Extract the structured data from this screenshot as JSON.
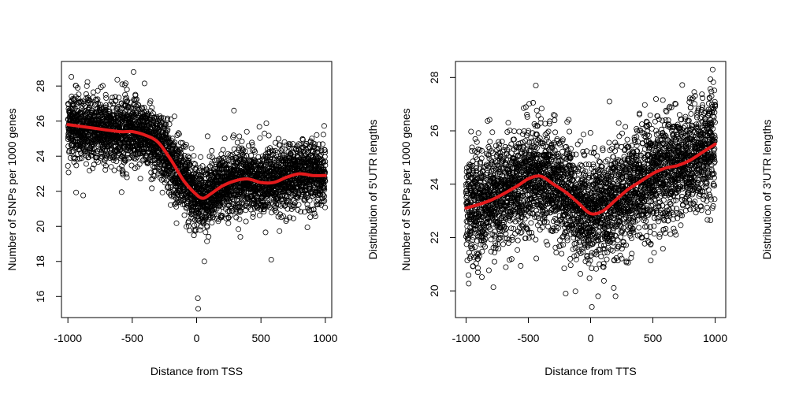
{
  "colors": {
    "points": "#000000",
    "smooth_line": "#e41a1c"
  },
  "chart_data": [
    {
      "type": "scatter",
      "title": "",
      "xlabel": "Distance from TSS",
      "ylabel": "Number of SNPs per 1000 genes",
      "secondary_ylabel": "Distribution of 5'UTR lengths",
      "xlim": [
        -1050,
        1050
      ],
      "ylim": [
        14.8,
        29.4
      ],
      "x_ticks": [
        -1000,
        -500,
        0,
        500,
        1000
      ],
      "x_tick_labels": [
        "-1000",
        "-500",
        "0",
        "500",
        "1000"
      ],
      "y_ticks": [
        16,
        18,
        20,
        22,
        24,
        26,
        28
      ],
      "y_tick_labels": [
        "16",
        "18",
        "20",
        "22",
        "24",
        "26",
        "28"
      ],
      "points_per_bin": 2,
      "point_x_range": [
        -1000,
        1000
      ],
      "scatter_sd": [
        1.0,
        1.15
      ],
      "outliers": [
        {
          "x": -490,
          "y": 28.8
        },
        {
          "x": 10,
          "y": 15.9
        },
        {
          "x": 12,
          "y": 15.3
        },
        {
          "x": 580,
          "y": 18.1
        },
        {
          "x": 60,
          "y": 18.0
        },
        {
          "x": 290,
          "y": 26.6
        },
        {
          "x": 340,
          "y": 19.4
        }
      ],
      "smooth": {
        "x": [
          -1000,
          -800,
          -600,
          -500,
          -400,
          -300,
          -200,
          -100,
          0,
          50,
          100,
          200,
          300,
          400,
          500,
          600,
          700,
          800,
          900,
          1000
        ],
        "y": [
          25.8,
          25.6,
          25.4,
          25.4,
          25.2,
          24.8,
          23.8,
          22.6,
          21.8,
          21.6,
          21.8,
          22.3,
          22.6,
          22.7,
          22.5,
          22.5,
          22.8,
          23.0,
          22.9,
          22.9
        ]
      }
    },
    {
      "type": "scatter",
      "title": "",
      "xlabel": "Distance from TTS",
      "ylabel": "Number of SNPs per 1000 genes",
      "secondary_ylabel": "Distribution of 3'UTR lengths",
      "xlim": [
        -1085,
        1085
      ],
      "ylim": [
        19.0,
        28.6
      ],
      "x_ticks": [
        -1000,
        -500,
        0,
        500,
        1000
      ],
      "x_tick_labels": [
        "-1000",
        "-500",
        "0",
        "500",
        "1000"
      ],
      "y_ticks": [
        20,
        22,
        24,
        26,
        28
      ],
      "y_tick_labels": [
        "20",
        "22",
        "24",
        "26",
        "28"
      ],
      "points_per_bin": 2,
      "point_x_range": [
        -1000,
        1000
      ],
      "scatter_sd": [
        1.05,
        1.3
      ],
      "outliers": [
        {
          "x": 980,
          "y": 28.3
        },
        {
          "x": -440,
          "y": 27.7
        },
        {
          "x": 10,
          "y": 19.4
        },
        {
          "x": 60,
          "y": 19.8
        },
        {
          "x": 200,
          "y": 19.8
        },
        {
          "x": -200,
          "y": 19.9
        }
      ],
      "smooth": {
        "x": [
          -1000,
          -800,
          -600,
          -500,
          -400,
          -300,
          -200,
          -100,
          0,
          100,
          200,
          300,
          400,
          500,
          600,
          700,
          800,
          900,
          1000
        ],
        "y": [
          23.1,
          23.4,
          23.9,
          24.2,
          24.3,
          24.0,
          23.7,
          23.3,
          22.9,
          23.0,
          23.4,
          23.8,
          24.1,
          24.4,
          24.6,
          24.7,
          24.9,
          25.2,
          25.5
        ]
      }
    }
  ]
}
